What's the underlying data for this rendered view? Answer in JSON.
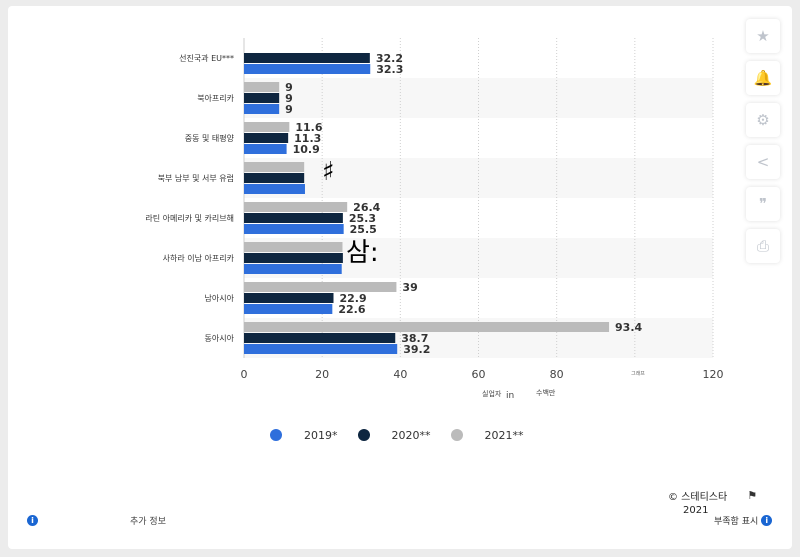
{
  "chart_data": {
    "type": "bar",
    "orientation": "horizontal",
    "categories": [
      "선진국과 EU***",
      "북아프리카",
      "중동 및 태평양",
      "북부 남부 및 서부 유럽",
      "라틴 아메리카 및 카리브해",
      "사하라 이남 아프리카",
      "남아시아",
      "동아시아"
    ],
    "series": [
      {
        "name": "2019*",
        "color": "#2f6fdc",
        "values": [
          32.3,
          9,
          10.9,
          15.6,
          25.5,
          25,
          22.6,
          39.2
        ]
      },
      {
        "name": "2020**",
        "color": "#0e2640",
        "values": [
          32.2,
          9,
          11.3,
          15.4,
          25.3,
          25.3,
          22.9,
          38.7
        ]
      },
      {
        "name": "2021**",
        "color": "#bbbbbb",
        "values": [
          null,
          9,
          11.6,
          15.4,
          26.4,
          25.2,
          39,
          93.4
        ]
      }
    ],
    "data_labels": [
      [
        "32.3",
        "9",
        "10.9",
        "",
        "25.5",
        "",
        "22.6",
        "39.2"
      ],
      [
        "32.2",
        "9",
        "11.3",
        "",
        "25.3",
        "",
        "22.9",
        "38.7"
      ],
      [
        "",
        "9",
        "11.6",
        "",
        "26.4",
        "",
        "39",
        "93.4"
      ]
    ],
    "xticks": [
      "0",
      "20",
      "40",
      "60",
      "80",
      "",
      "120"
    ],
    "xtick_values": [
      0,
      20,
      40,
      60,
      80,
      100,
      120
    ],
    "xlim": [
      0,
      120
    ],
    "xlabel_parts": [
      "실업자",
      "in",
      "수백만"
    ],
    "small_tick_text": "그래프",
    "grid": true,
    "legend_position": "bottom"
  },
  "overlay_glyphs": {
    "sharp": "♯",
    "sam": "삼:"
  },
  "toolbar": {
    "icons": [
      "star-icon",
      "bell-icon",
      "gear-icon",
      "share-icon",
      "quote-icon",
      "print-icon"
    ],
    "glyphs": [
      "★",
      "🔔",
      "⚙",
      "<",
      "❞",
      "⎙"
    ]
  },
  "footer": {
    "more_info": "추가 정보",
    "copyright": "© 스테티스타",
    "year": "2021",
    "report": "부족함 표시"
  },
  "colors": {
    "series_2019": "#2f6fdc",
    "series_2020": "#0e2640",
    "series_2021": "#bbbbbb"
  }
}
